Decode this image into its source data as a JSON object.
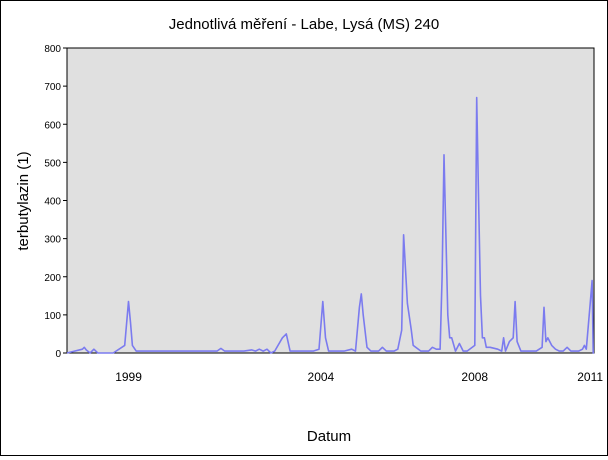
{
  "chart_data": {
    "type": "line",
    "title": "Jednotlivá měření - Labe, Lysá (MS) 240",
    "xlabel": "Datum",
    "ylabel": "terbutylazin (1)",
    "ylim": [
      0,
      800
    ],
    "xlim": [
      1997.4,
      2011.1
    ],
    "yticks": [
      0,
      100,
      200,
      300,
      400,
      500,
      600,
      700,
      800
    ],
    "xticks": [
      {
        "label": "1999",
        "value": 1999.0
      },
      {
        "label": "2004",
        "value": 2004.0
      },
      {
        "label": "2008",
        "value": 2008.0
      },
      {
        "label": "2011",
        "value": 2011.0
      }
    ],
    "grid": false,
    "background": "#e0e0e0",
    "line_color": "#7b7bef",
    "series": [
      {
        "x": [
          1997.4,
          1997.8,
          1997.85,
          1997.9,
          1998.0,
          1998.1,
          1998.2,
          1998.4,
          1998.6,
          1998.9,
          1999.0,
          1999.05,
          1999.1,
          1999.2,
          1999.3,
          2000.0,
          2001.0,
          2001.3,
          2001.4,
          2001.5,
          2002.0,
          2002.2,
          2002.3,
          2002.4,
          2002.5,
          2002.6,
          2002.7,
          2002.8,
          2003.0,
          2003.1,
          2003.2,
          2003.3,
          2003.4,
          2003.6,
          2003.8,
          2003.95,
          2004.05,
          2004.12,
          2004.2,
          2004.3,
          2004.6,
          2004.8,
          2004.9,
          2005.0,
          2005.05,
          2005.1,
          2005.2,
          2005.3,
          2005.5,
          2005.6,
          2005.7,
          2005.9,
          2006.0,
          2006.1,
          2006.15,
          2006.25,
          2006.35,
          2006.4,
          2006.6,
          2006.8,
          2006.9,
          2007.0,
          2007.1,
          2007.15,
          2007.2,
          2007.3,
          2007.35,
          2007.4,
          2007.5,
          2007.6,
          2007.7,
          2007.8,
          2008.0,
          2008.05,
          2008.1,
          2008.15,
          2008.2,
          2008.25,
          2008.3,
          2008.4,
          2008.6,
          2008.7,
          2008.75,
          2008.8,
          2008.9,
          2009.0,
          2009.05,
          2009.1,
          2009.2,
          2009.4,
          2009.6,
          2009.75,
          2009.8,
          2009.85,
          2009.9,
          2010.0,
          2010.1,
          2010.2,
          2010.3,
          2010.4,
          2010.5,
          2010.6,
          2010.7,
          2010.8,
          2010.85,
          2010.9,
          2011.0,
          2011.05,
          2011.08,
          2011.1
        ],
        "y": [
          0,
          10,
          15,
          8,
          0,
          10,
          0,
          0,
          0,
          20,
          135,
          80,
          20,
          5,
          5,
          5,
          5,
          5,
          12,
          5,
          5,
          8,
          5,
          10,
          5,
          10,
          0,
          5,
          40,
          50,
          5,
          5,
          5,
          5,
          5,
          10,
          135,
          40,
          5,
          5,
          5,
          10,
          5,
          120,
          155,
          100,
          15,
          5,
          5,
          15,
          5,
          5,
          10,
          60,
          310,
          130,
          60,
          20,
          5,
          5,
          15,
          10,
          10,
          200,
          520,
          100,
          40,
          40,
          5,
          25,
          5,
          5,
          20,
          670,
          400,
          150,
          40,
          40,
          15,
          15,
          10,
          5,
          40,
          5,
          30,
          40,
          135,
          30,
          5,
          5,
          5,
          15,
          120,
          30,
          40,
          20,
          10,
          5,
          5,
          15,
          5,
          5,
          5,
          10,
          20,
          10,
          130,
          190,
          0,
          0
        ]
      }
    ]
  }
}
